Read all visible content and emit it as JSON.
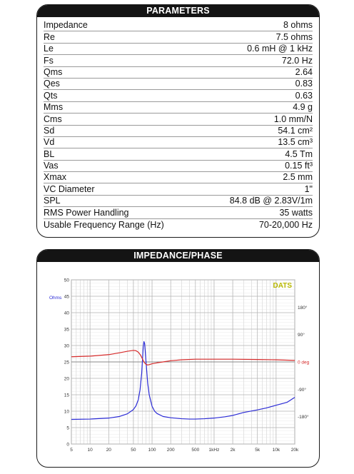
{
  "parameters": {
    "title": "PARAMETERS",
    "rows": [
      {
        "label": "Impedance",
        "value": "8 ohms"
      },
      {
        "label": "Re",
        "value": "7.5 ohms"
      },
      {
        "label": "Le",
        "value": "0.6 mH @ 1 kHz"
      },
      {
        "label": "Fs",
        "value": "72.0 Hz"
      },
      {
        "label": "Qms",
        "value": "2.64"
      },
      {
        "label": "Qes",
        "value": "0.83"
      },
      {
        "label": "Qts",
        "value": "0.63"
      },
      {
        "label": "Mms",
        "value": "4.9 g"
      },
      {
        "label": "Cms",
        "value": "1.0 mm/N"
      },
      {
        "label": "Sd",
        "value": "54.1 cm²"
      },
      {
        "label": "Vd",
        "value": "13.5 cm³"
      },
      {
        "label": "BL",
        "value": "4.5 Tm"
      },
      {
        "label": "Vas",
        "value": "0.15 ft³"
      },
      {
        "label": "Xmax",
        "value": "2.5 mm"
      },
      {
        "label": "VC Diameter",
        "value": "1\""
      },
      {
        "label": "SPL",
        "value": "84.8 dB @ 2.83V/1m"
      },
      {
        "label": "RMS Power Handling",
        "value": "35 watts"
      },
      {
        "label": "Usable Frequency Range (Hz)",
        "value": "70-20,000 Hz"
      }
    ]
  },
  "impedance_panel": {
    "title": "IMPEDANCE/PHASE",
    "brand": "DATS"
  },
  "colors": {
    "impedance": "#2b2bd6",
    "phase": "#d62b2b",
    "brand": "#b8b800",
    "grid": "#c8c8c8"
  },
  "chart_data": {
    "type": "line",
    "x_scale": "log",
    "xlim": [
      5,
      20000
    ],
    "x_ticks": [
      5,
      10,
      20,
      50,
      100,
      200,
      500,
      1000,
      2000,
      5000,
      10000,
      20000
    ],
    "x_tick_labels": [
      "5",
      "10",
      "20",
      "50",
      "100",
      "200",
      "500",
      "1kHz",
      "2k",
      "5k",
      "10k",
      "20k"
    ],
    "ylabel": "Ohms",
    "ylim": [
      0,
      50
    ],
    "y_ticks": [
      0,
      5,
      10,
      15,
      20,
      25,
      30,
      35,
      40,
      45,
      50
    ],
    "y_tick_labels": [
      "0",
      "5",
      "10",
      "15",
      "20",
      "25",
      "30",
      "35",
      "40",
      "45",
      "50"
    ],
    "y2label": "deg",
    "y2lim": [
      -270,
      270
    ],
    "y2_tick_labels": [
      "180°",
      "90°",
      "0 deg",
      "-90°",
      "-180°"
    ],
    "y2_ticks": [
      180,
      90,
      0,
      -90,
      -180
    ],
    "grid": true,
    "series": [
      {
        "axis": "left",
        "x": [
          5,
          10,
          20,
          30,
          40,
          50,
          55,
          60,
          64,
          68,
          70,
          72,
          74,
          76,
          80,
          85,
          90,
          100,
          110,
          120,
          150,
          200,
          300,
          400,
          500,
          700,
          1000,
          1500,
          2000,
          3000,
          5000,
          7000,
          10000,
          15000,
          20000
        ],
        "y": [
          7.5,
          7.6,
          7.9,
          8.4,
          9.2,
          10.5,
          11.6,
          13.5,
          16.5,
          21.5,
          25.5,
          29.5,
          31.2,
          30.5,
          25.0,
          18.5,
          15.0,
          11.5,
          10.0,
          9.3,
          8.4,
          8.0,
          7.7,
          7.6,
          7.6,
          7.7,
          7.9,
          8.3,
          8.7,
          9.6,
          10.4,
          11.0,
          11.8,
          12.7,
          14.2
        ]
      },
      {
        "axis": "right",
        "x": [
          5,
          10,
          20,
          30,
          40,
          50,
          55,
          60,
          65,
          70,
          75,
          80,
          85,
          90,
          100,
          120,
          150,
          200,
          300,
          500,
          1000,
          2000,
          5000,
          10000,
          20000
        ],
        "y": [
          17,
          19,
          24,
          30,
          35,
          38,
          37,
          32,
          23,
          10,
          -2,
          -8,
          -10,
          -9,
          -6,
          -3,
          0,
          4,
          7,
          9,
          9,
          9,
          8,
          7,
          5
        ]
      }
    ]
  }
}
